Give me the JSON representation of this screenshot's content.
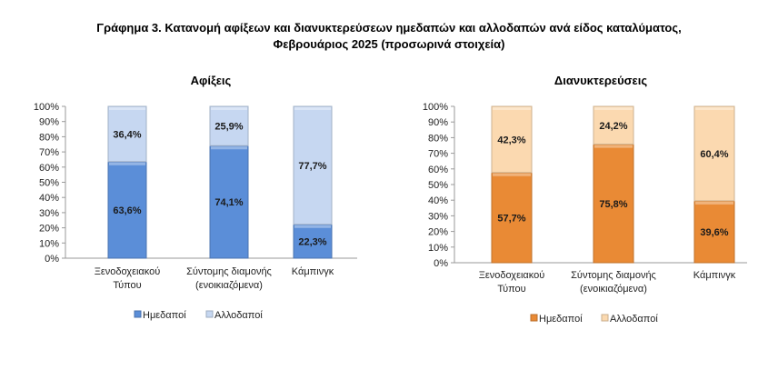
{
  "title": {
    "line1": "Γράφημα 3. Κατανομή αφίξεων και διανυκτερεύσεων ημεδαπών και αλλοδαπών ανά είδος καταλύματος,",
    "line2": "Φεβρουάριος 2025 (προσωρινά στοιχεία)"
  },
  "colors": {
    "arrivals_domestic": "#5b8ed8",
    "arrivals_foreign": "#c6d7f1",
    "nights_domestic": "#e98a35",
    "nights_foreign": "#fbd9b0"
  },
  "chart_data": [
    {
      "type": "bar",
      "stacked": true,
      "percent": true,
      "title": "Αφίξεις",
      "categories": [
        [
          "Ξενοδοχειακού",
          "Τύπου"
        ],
        [
          "Σύντομης διαμονής",
          "(ενοικιαζόμενα)"
        ],
        [
          "Κάμπινγκ"
        ]
      ],
      "series": [
        {
          "name": "Ημεδαποί",
          "values": [
            63.6,
            74.1,
            22.3
          ],
          "labels": [
            "63,6%",
            "74,1%",
            "22,3%"
          ]
        },
        {
          "name": "Αλλοδαποί",
          "values": [
            36.4,
            25.9,
            77.7
          ],
          "labels": [
            "36,4%",
            "25,9%",
            "77,7%"
          ]
        }
      ],
      "yticks": [
        "0%",
        "10%",
        "20%",
        "30%",
        "40%",
        "50%",
        "60%",
        "70%",
        "80%",
        "90%",
        "100%"
      ],
      "ylim": [
        0,
        100
      ],
      "legend": "bottom"
    },
    {
      "type": "bar",
      "stacked": true,
      "percent": true,
      "title": "Διανυκτερεύσεις",
      "categories": [
        [
          "Ξενοδοχειακού",
          "Τύπου"
        ],
        [
          "Σύντομης διαμονής",
          "(ενοικιαζόμενα)"
        ],
        [
          "Κάμπινγκ"
        ]
      ],
      "series": [
        {
          "name": "Ημεδαποί",
          "values": [
            57.7,
            75.8,
            39.6
          ],
          "labels": [
            "57,7%",
            "75,8%",
            "39,6%"
          ]
        },
        {
          "name": "Αλλοδαποί",
          "values": [
            42.3,
            24.2,
            60.4
          ],
          "labels": [
            "42,3%",
            "24,2%",
            "60,4%"
          ]
        }
      ],
      "yticks": [
        "0%",
        "10%",
        "20%",
        "30%",
        "40%",
        "50%",
        "60%",
        "70%",
        "80%",
        "90%",
        "100%"
      ],
      "ylim": [
        0,
        100
      ],
      "legend": "bottom"
    }
  ]
}
